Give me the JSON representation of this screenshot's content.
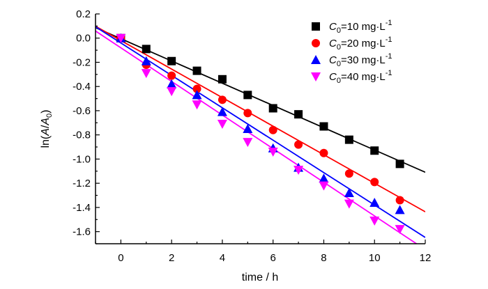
{
  "chart_data": {
    "type": "scatter",
    "xlabel": "time / h",
    "ylabel_prefix": "ln(",
    "ylabel_A": "A",
    "ylabel_slash": "/",
    "ylabel_A0": "A",
    "ylabel_sub": "0",
    "ylabel_suffix": ")",
    "xlim": [
      -1,
      12
    ],
    "ylim": [
      -1.7,
      0.2
    ],
    "x_ticks": [
      0,
      2,
      4,
      6,
      8,
      10,
      12
    ],
    "x_tick_labels": [
      "0",
      "2",
      "4",
      "6",
      "8",
      "10",
      "12"
    ],
    "y_ticks": [
      0.2,
      0.0,
      -0.2,
      -0.4,
      -0.6,
      -0.8,
      -1.0,
      -1.2,
      -1.4,
      -1.6
    ],
    "y_tick_labels": [
      "0.2",
      "0.0",
      "-0.2",
      "-0.4",
      "-0.6",
      "-0.8",
      "-1.0",
      "-1.2",
      "-1.4",
      "-1.6"
    ],
    "legend_position": "top-right",
    "series": [
      {
        "label_var": "C",
        "label_sub": "0",
        "label_rest": "=10 mg·L",
        "label_sup": "-1",
        "color": "#000000",
        "marker": "square",
        "x": [
          0,
          1,
          2,
          3,
          4,
          5,
          6,
          7,
          8,
          9,
          10,
          11
        ],
        "y": [
          0.0,
          -0.09,
          -0.19,
          -0.27,
          -0.34,
          -0.47,
          -0.58,
          -0.63,
          -0.73,
          -0.84,
          -0.93,
          -1.04
        ],
        "fit": {
          "intercept": -0.005,
          "slope": -0.092
        }
      },
      {
        "label_var": "C",
        "label_sub": "0",
        "label_rest": "=20 mg·L",
        "label_sup": "-1",
        "color": "#ff0000",
        "marker": "circle",
        "x": [
          0,
          1,
          2,
          3,
          4,
          5,
          6,
          7,
          8,
          9,
          10,
          11
        ],
        "y": [
          0.0,
          -0.22,
          -0.31,
          -0.42,
          -0.51,
          -0.62,
          -0.76,
          -0.88,
          -0.95,
          -1.12,
          -1.19,
          -1.34
        ],
        "fit": {
          "intercept": -0.02,
          "slope": -0.118
        }
      },
      {
        "label_var": "C",
        "label_sub": "0",
        "label_rest": "=30 mg·L",
        "label_sup": "-1",
        "color": "#0000ff",
        "marker": "triangle-up",
        "x": [
          0,
          1,
          2,
          3,
          4,
          5,
          6,
          7,
          8,
          9,
          10,
          11
        ],
        "y": [
          0.0,
          -0.19,
          -0.38,
          -0.47,
          -0.61,
          -0.75,
          -0.91,
          -1.07,
          -1.16,
          -1.28,
          -1.36,
          -1.42
        ],
        "fit": {
          "intercept": -0.04,
          "slope": -0.134
        }
      },
      {
        "label_var": "C",
        "label_sub": "0",
        "label_rest": "=40 mg·L",
        "label_sup": "-1",
        "color": "#ff00ff",
        "marker": "triangle-down",
        "x": [
          0,
          1,
          2,
          3,
          4,
          5,
          6,
          7,
          8,
          9,
          10,
          11
        ],
        "y": [
          0.0,
          -0.29,
          -0.44,
          -0.55,
          -0.71,
          -0.86,
          -0.94,
          -1.09,
          -1.22,
          -1.37,
          -1.51,
          -1.58
        ],
        "fit": {
          "intercept": -0.08,
          "slope": -0.139
        }
      }
    ]
  }
}
